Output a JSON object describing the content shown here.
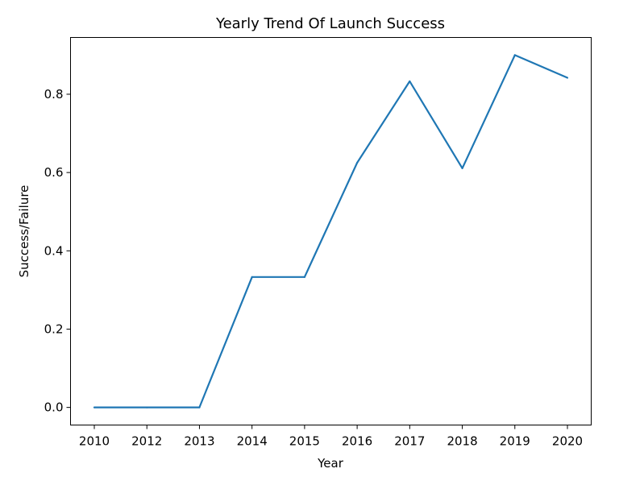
{
  "chart_data": {
    "type": "line",
    "title": "Yearly Trend Of Launch Success",
    "xlabel": "Year",
    "ylabel": "Success/Failure",
    "categories": [
      "2010",
      "2012",
      "2013",
      "2014",
      "2015",
      "2016",
      "2017",
      "2018",
      "2019",
      "2020"
    ],
    "series": [
      {
        "values": [
          0.0,
          0.0,
          0.0,
          0.333,
          0.333,
          0.625,
          0.833,
          0.611,
          0.9,
          0.842
        ],
        "color": "#1f77b4"
      }
    ],
    "yticks": [
      "0.0",
      "0.2",
      "0.4",
      "0.6",
      "0.8"
    ],
    "ylim": [
      -0.045,
      0.945
    ],
    "grid": false,
    "legend": "none"
  }
}
